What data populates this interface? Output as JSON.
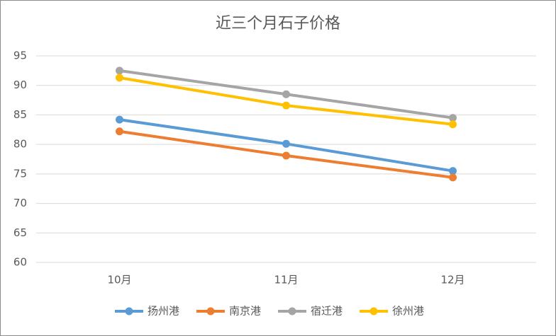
{
  "chart_data": {
    "type": "line",
    "title": "近三个月石子价格",
    "categories": [
      "10月",
      "11月",
      "12月"
    ],
    "series": [
      {
        "name": "扬州港",
        "color": "#5b9bd5",
        "values": [
          84.2,
          80.1,
          75.5
        ]
      },
      {
        "name": "南京港",
        "color": "#ed7d31",
        "values": [
          82.2,
          78.1,
          74.4
        ]
      },
      {
        "name": "宿迁港",
        "color": "#a5a5a5",
        "values": [
          92.5,
          88.5,
          84.5
        ]
      },
      {
        "name": "徐州港",
        "color": "#ffc000",
        "values": [
          91.3,
          86.6,
          83.4
        ]
      }
    ],
    "ylim": [
      60,
      95
    ],
    "yticks": [
      60,
      65,
      70,
      75,
      80,
      85,
      90,
      95
    ],
    "grid": true,
    "legend": "bottom"
  }
}
